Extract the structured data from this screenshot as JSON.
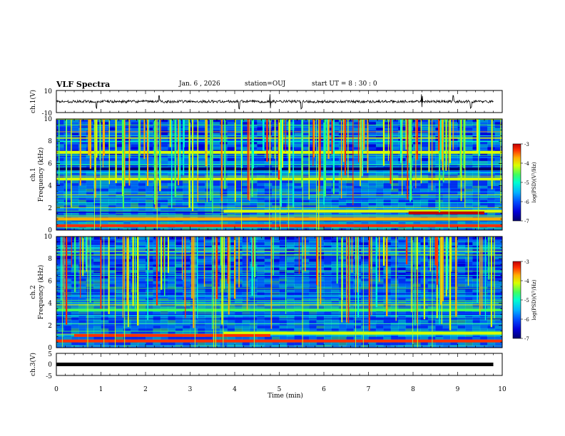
{
  "header": {
    "title": "VLF Spectra",
    "date": "Jan. 6 , 2026",
    "station": "station=OUJ",
    "start_ut": "start UT =  8 : 30 : 0"
  },
  "colors": {
    "colormap": [
      "#00006e",
      "#0000d8",
      "#0050ff",
      "#00b4ff",
      "#00ffd0",
      "#40ff60",
      "#d8ff00",
      "#ffb000",
      "#ff3000",
      "#c00000"
    ],
    "trace": "#000000"
  },
  "chart_data": [
    {
      "type": "line",
      "name": "ch1-waveform",
      "ylabel": "ch.1(V)",
      "ylim": [
        -10,
        10
      ],
      "yticks": [
        "10",
        "-10"
      ],
      "xlim": [
        0,
        10
      ],
      "baseline": 0,
      "description_values": {
        "typical_amplitude": 1.2,
        "spikes_at_min": [
          0.9,
          2.3,
          4.1,
          4.8,
          5.5,
          8.2,
          8.9,
          9.3
        ]
      }
    },
    {
      "type": "heatmap",
      "name": "ch1-spectrogram",
      "ylabel": "ch.1\nFrequency (kHz)",
      "ylim": [
        0,
        10
      ],
      "yticks": [
        "0",
        "2",
        "4",
        "6",
        "8",
        "10"
      ],
      "xlim": [
        0,
        10
      ],
      "colorbar": {
        "label": "log(PSD)(V²/Hz)",
        "range": [
          -7,
          -3
        ],
        "ticks": [
          "-3",
          "-4",
          "-5",
          "-6",
          "-7"
        ]
      },
      "bands_khz": [
        {
          "f": 0.4,
          "level": -3.6,
          "t0": 0,
          "t1": 10
        },
        {
          "f": 1.0,
          "level": -4.2,
          "t0": 0,
          "t1": 10
        },
        {
          "f": 1.7,
          "level": -4.4,
          "t0": 3.75,
          "t1": 10
        },
        {
          "f": 1.55,
          "level": -3.4,
          "t0": 7.9,
          "t1": 9.6
        },
        {
          "f": 4.6,
          "level": -4.6,
          "t0": 0,
          "t1": 10
        },
        {
          "f": 5.5,
          "level": -7.0,
          "t0": 0,
          "t1": 10
        },
        {
          "f": 7.0,
          "level": -4.3,
          "t0": 0,
          "t1": 10
        }
      ]
    },
    {
      "type": "heatmap",
      "name": "ch2-spectrogram",
      "ylabel": "ch.2\nFrequency (kHz)",
      "ylim": [
        0,
        10
      ],
      "yticks": [
        "0",
        "2",
        "4",
        "6",
        "8",
        "10"
      ],
      "xlim": [
        0,
        10
      ],
      "colorbar": {
        "label": "log(PSD)(V²/Hz)",
        "range": [
          -7,
          -3
        ],
        "ticks": [
          "-3",
          "-4",
          "-5",
          "-6",
          "-7"
        ]
      },
      "bands_khz": [
        {
          "f": 0.6,
          "level": -3.7,
          "t0": 0,
          "t1": 10
        },
        {
          "f": 1.3,
          "level": -4.4,
          "t0": 3.75,
          "t1": 10
        },
        {
          "f": 3.4,
          "level": -4.8,
          "t0": 0,
          "t1": 10
        },
        {
          "f": 1.1,
          "level": -3.8,
          "t0": 0.4,
          "t1": 4.8
        }
      ]
    },
    {
      "type": "line",
      "name": "ch3-waveform",
      "ylabel": "ch.3(V)",
      "ylim": [
        -5,
        5
      ],
      "yticks": [
        "5",
        "0",
        "-5"
      ],
      "xlim": [
        0,
        10
      ],
      "baseline": 0
    }
  ],
  "xaxis": {
    "label": "Time (min)",
    "ticks": [
      "0",
      "1",
      "2",
      "3",
      "4",
      "5",
      "6",
      "7",
      "8",
      "9",
      "10"
    ]
  }
}
